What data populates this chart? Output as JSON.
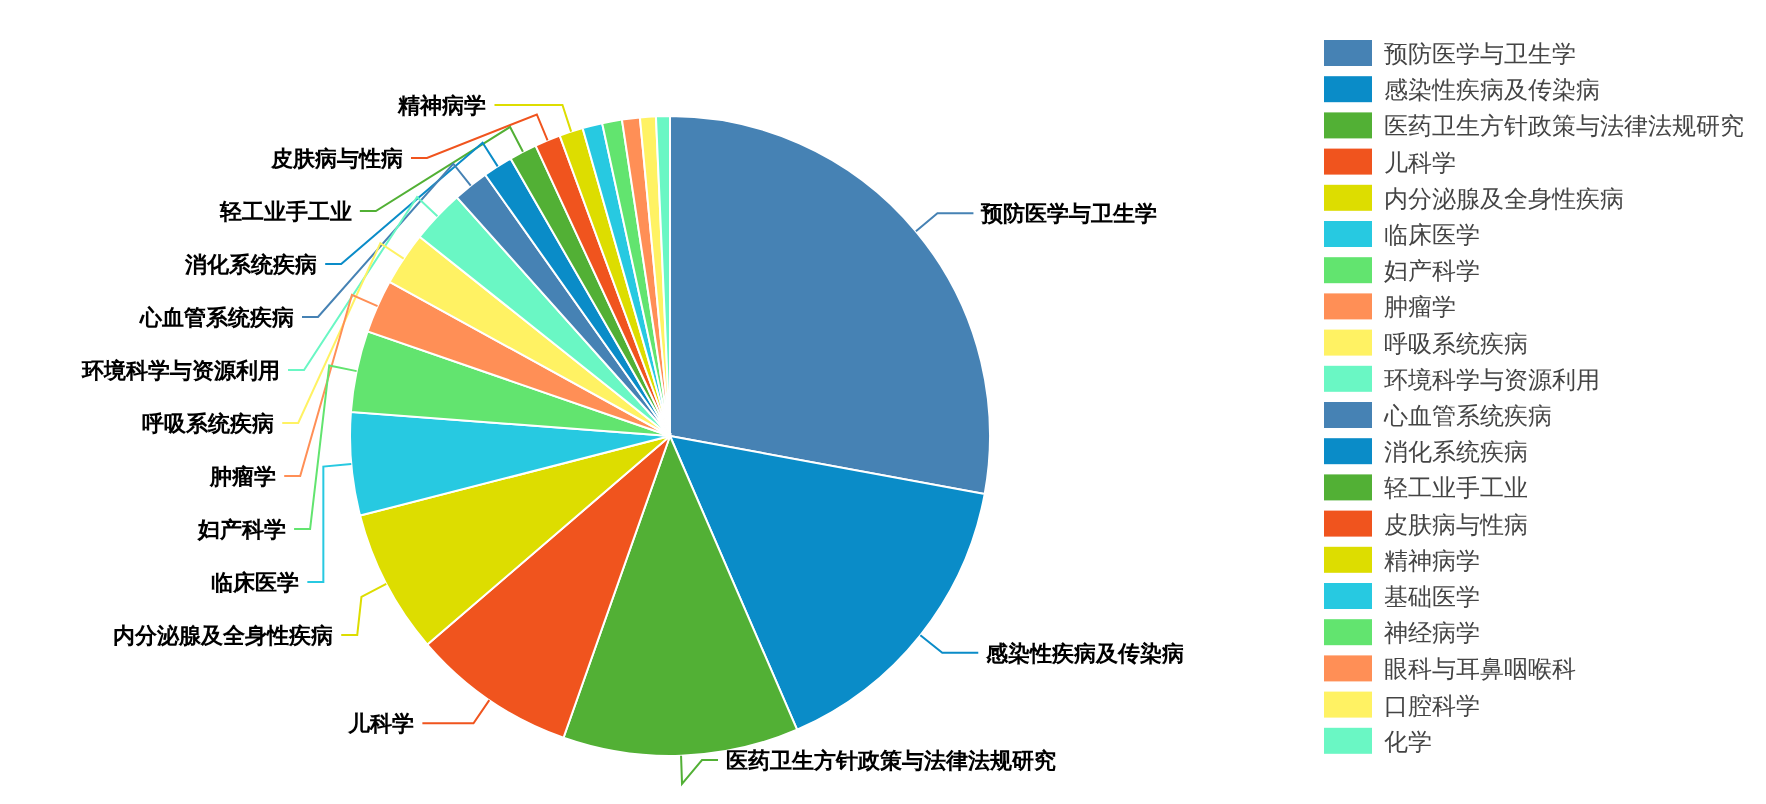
{
  "chart_data": {
    "type": "pie",
    "legend": "right",
    "categories": [
      "预防医学与卫生学",
      "感染性疾病及传染病",
      "医药卫生方针政策与法律法规研究",
      "儿科学",
      "内分泌腺及全身性疾病",
      "临床医学",
      "妇产科学",
      "肿瘤学",
      "呼吸系统疾病",
      "环境科学与资源利用",
      "心血管系统疾病",
      "消化系统疾病",
      "轻工业手工业",
      "皮肤病与性病",
      "精神病学",
      "基础医学",
      "神经病学",
      "眼科与耳鼻咽喉科",
      "口腔科学",
      "化学"
    ],
    "values": [
      27.9,
      15.6,
      11.9,
      8.3,
      7.3,
      5.2,
      4.1,
      2.7,
      2.7,
      2.7,
      1.8,
      1.5,
      1.4,
      1.3,
      1.2,
      1.0,
      1.0,
      0.9,
      0.8,
      0.7
    ],
    "colors": [
      "#4682b4",
      "#0a8cc8",
      "#52b035",
      "#f0541e",
      "#dddd00",
      "#27c9e1",
      "#62e46f",
      "#ff8f56",
      "#fff263",
      "#6af7c4",
      "#4682b4",
      "#0a8cc8",
      "#52b035",
      "#f0541e",
      "#dddd00",
      "#27c9e1",
      "#62e46f",
      "#ff8f56",
      "#fff263",
      "#6af7c4"
    ]
  }
}
